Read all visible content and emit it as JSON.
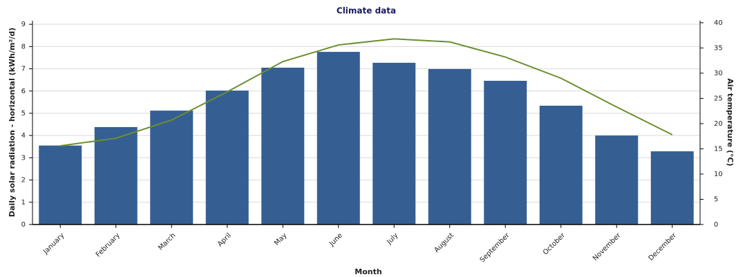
{
  "chart_data": {
    "type": "bar",
    "title": "Climate data",
    "x_label": "Month",
    "y_label": "Daily solar radiation - horizontal (kWh/m²/d)",
    "y2_label": "Air temperature (°C)",
    "categories": [
      "January",
      "February",
      "March",
      "April",
      "May",
      "June",
      "July",
      "August",
      "September",
      "October",
      "November",
      "December"
    ],
    "series": [
      {
        "type": "bar",
        "color": "#355f93",
        "values": [
          3.55,
          4.38,
          5.12,
          6.02,
          7.05,
          7.76,
          7.27,
          6.99,
          6.46,
          5.34,
          4.0,
          3.29
        ]
      },
      {
        "type": "line",
        "axis": "y2",
        "color": "#6b8e2f",
        "values": [
          15.6,
          17.1,
          20.7,
          26.3,
          32.3,
          35.6,
          36.8,
          36.2,
          33.2,
          29.0,
          23.3,
          17.8
        ]
      }
    ],
    "ylim": [
      0,
      9.16
    ],
    "yticks": [
      0,
      1,
      2,
      3,
      4,
      5,
      6,
      7,
      8,
      9
    ],
    "y2lim": [
      0,
      40.4
    ],
    "y2ticks": [
      0,
      5,
      10,
      15,
      20,
      25,
      30,
      35,
      40
    ],
    "grid": true
  }
}
